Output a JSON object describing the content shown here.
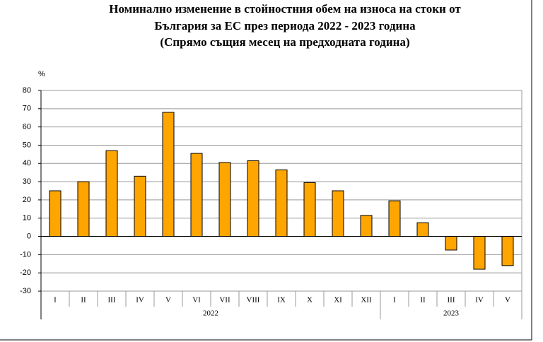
{
  "chart_data": {
    "type": "bar",
    "title": [
      "Номинално изменение в стойностния обем на износа на стоки от",
      "България за ЕС през периода 2022 - 2023 година",
      "(Спрямо същия месец на предходната година)"
    ],
    "y_unit": "%",
    "groups": [
      {
        "label": "2022",
        "categories": [
          "I",
          "II",
          "III",
          "IV",
          "V",
          "VI",
          "VII",
          "VIII",
          "IX",
          "X",
          "XI",
          "XII"
        ],
        "values": [
          25,
          30,
          47,
          33,
          68,
          45.5,
          40.5,
          41.5,
          36.5,
          29.5,
          25,
          11.5
        ]
      },
      {
        "label": "2023",
        "categories": [
          "I",
          "II",
          "III",
          "IV",
          "V"
        ],
        "values": [
          19.5,
          7.5,
          -7.5,
          -18,
          -16
        ]
      }
    ],
    "color": "#ffa500",
    "ylim": [
      -30,
      80
    ],
    "yticks": [
      -30,
      -20,
      -10,
      0,
      10,
      20,
      30,
      40,
      50,
      60,
      70,
      80
    ],
    "grid": true
  }
}
